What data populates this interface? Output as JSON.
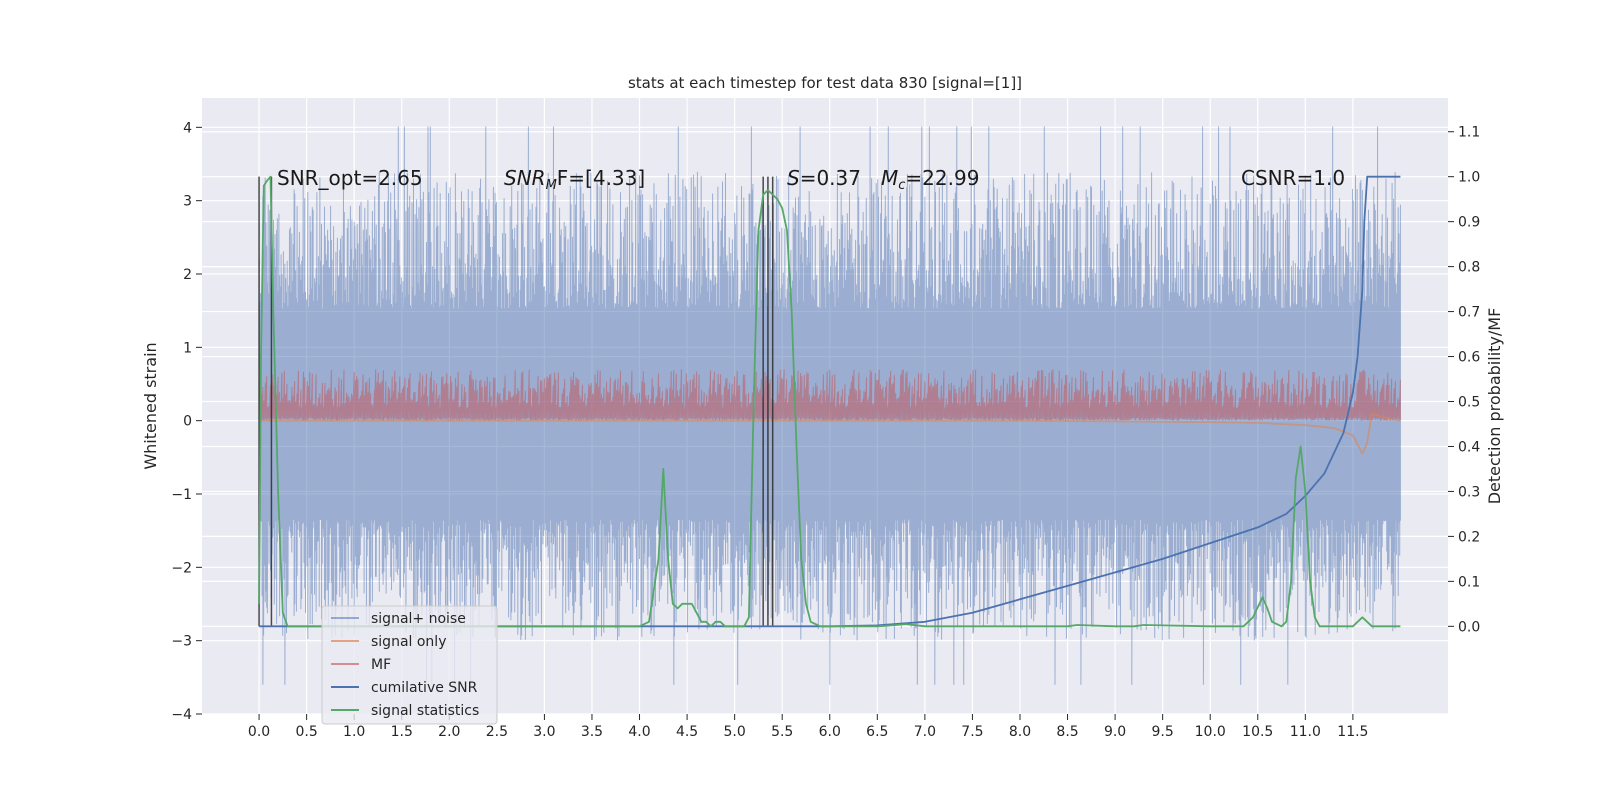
{
  "chart_data": {
    "type": "line",
    "title": "stats at each timestep for test data 830 [signal=[1]]",
    "xlabel": "",
    "ylabel": "Whitened strain",
    "ylabel_right": "Detection probability/MF",
    "xlim": [
      -0.6,
      12.5
    ],
    "ylim": [
      -4.0,
      4.4
    ],
    "ylim_right": [
      -0.195,
      1.175
    ],
    "x_ticks": [
      "0.0",
      "0.5",
      "1.0",
      "1.5",
      "2.0",
      "2.5",
      "3.0",
      "3.5",
      "4.0",
      "4.5",
      "5.0",
      "5.5",
      "6.0",
      "6.5",
      "7.0",
      "7.5",
      "8.0",
      "8.5",
      "9.0",
      "9.5",
      "10.0",
      "10.5",
      "11.0",
      "11.5"
    ],
    "y_ticks": [
      "4",
      "3",
      "2",
      "1",
      "0",
      "−1",
      "−2",
      "−3",
      "−4"
    ],
    "y_ticks_right": [
      "1.1",
      "1.0",
      "0.9",
      "0.8",
      "0.7",
      "0.6",
      "0.5",
      "0.4",
      "0.3",
      "0.2",
      "0.1",
      "0.0"
    ],
    "annotations": {
      "snr_opt": "SNR_opt=2.65",
      "snr_mf_prefix": "SNR",
      "snr_mf_sub": "M",
      "snr_mf_suffix": "F=[4.33]",
      "s_prefix": "S",
      "s_suffix": "=0.37",
      "mc_prefix": "M",
      "mc_sub": "c",
      "mc_suffix": "=22.99",
      "csnr": "CSNR=1.0"
    },
    "legend": {
      "location": "lower-left",
      "entries": [
        "signal+ noise",
        "signal only",
        "MF",
        "cumilative SNR",
        "signal statistics"
      ]
    },
    "series": [
      {
        "name": "signal+ noise",
        "axis": "left",
        "color": "#4c72b0",
        "opacity": 0.5,
        "style": "noise",
        "x_range": [
          0.0,
          12.0
        ],
        "envelope": [
          -3.0,
          3.4
        ]
      },
      {
        "name": "signal only",
        "axis": "left",
        "color": "#dd8452",
        "opacity": 0.6,
        "x": [
          0.0,
          2.0,
          4.0,
          6.0,
          8.0,
          10.0,
          10.5,
          11.0,
          11.3,
          11.5,
          11.6,
          11.65,
          11.7,
          11.8,
          12.0
        ],
        "y": [
          0.0,
          0.0,
          0.0,
          0.0,
          0.0,
          -0.02,
          -0.03,
          -0.06,
          -0.1,
          -0.2,
          -0.45,
          -0.3,
          0.1,
          0.05,
          0.0
        ]
      },
      {
        "name": "MF",
        "axis": "left",
        "color": "#c44e52",
        "opacity": 0.5,
        "style": "band",
        "x_range": [
          0.0,
          12.0
        ],
        "band": [
          0.0,
          0.7
        ]
      },
      {
        "name": "cumilative SNR",
        "axis": "right",
        "color": "#4c72b0",
        "opacity": 1.0,
        "x": [
          0.0,
          6.0,
          6.5,
          7.0,
          7.5,
          8.0,
          8.5,
          9.0,
          9.5,
          10.0,
          10.5,
          10.8,
          11.0,
          11.2,
          11.4,
          11.5,
          11.55,
          11.6,
          11.62,
          11.65,
          11.7,
          12.0
        ],
        "y": [
          0.0,
          0.0,
          0.002,
          0.01,
          0.03,
          0.06,
          0.09,
          0.12,
          0.15,
          0.185,
          0.22,
          0.25,
          0.29,
          0.34,
          0.43,
          0.52,
          0.6,
          0.75,
          0.9,
          1.0,
          1.0,
          1.0
        ]
      },
      {
        "name": "signal statistics",
        "axis": "right",
        "color": "#55a868",
        "opacity": 1.0,
        "x": [
          0.0,
          0.02,
          0.05,
          0.08,
          0.12,
          0.15,
          0.2,
          0.25,
          0.3,
          0.4,
          1.0,
          2.0,
          3.0,
          4.0,
          4.1,
          4.2,
          4.25,
          4.3,
          4.35,
          4.4,
          4.45,
          4.5,
          4.55,
          4.6,
          4.65,
          4.7,
          4.75,
          4.8,
          4.85,
          4.9,
          5.0,
          5.1,
          5.15,
          5.2,
          5.25,
          5.3,
          5.35,
          5.4,
          5.45,
          5.5,
          5.55,
          5.6,
          5.65,
          5.7,
          5.75,
          5.8,
          5.9,
          6.0,
          6.5,
          6.7,
          6.8,
          7.0,
          8.0,
          8.5,
          8.6,
          9.0,
          9.2,
          9.3,
          10.0,
          10.35,
          10.45,
          10.55,
          10.6,
          10.65,
          10.7,
          10.75,
          10.8,
          10.85,
          10.9,
          10.95,
          11.0,
          11.05,
          11.1,
          11.15,
          11.2,
          11.3,
          11.4,
          11.5,
          11.55,
          11.6,
          11.7,
          11.8,
          11.9,
          12.0
        ],
        "y": [
          0.05,
          0.6,
          0.98,
          0.99,
          1.0,
          0.7,
          0.3,
          0.03,
          0.0,
          0.0,
          0.0,
          0.0,
          0.0,
          0.0,
          0.01,
          0.15,
          0.35,
          0.15,
          0.05,
          0.04,
          0.05,
          0.05,
          0.05,
          0.03,
          0.01,
          0.01,
          0.0,
          0.01,
          0.01,
          0.0,
          0.0,
          0.0,
          0.02,
          0.5,
          0.88,
          0.96,
          0.97,
          0.96,
          0.95,
          0.93,
          0.88,
          0.7,
          0.4,
          0.15,
          0.05,
          0.01,
          0.0,
          0.0,
          0.0,
          0.003,
          0.005,
          0.0,
          0.0,
          0.0,
          0.003,
          0.0,
          0.0,
          0.003,
          0.0,
          0.0,
          0.02,
          0.065,
          0.04,
          0.01,
          0.005,
          0.0,
          0.01,
          0.1,
          0.33,
          0.4,
          0.3,
          0.1,
          0.02,
          0.0,
          0.0,
          0.0,
          0.0,
          0.0,
          0.01,
          0.02,
          0.0,
          0.0,
          0.0,
          0.0
        ]
      },
      {
        "name": "segment markers",
        "axis": "right",
        "color": "#2b2b2b",
        "opacity": 0.85,
        "style": "vlines",
        "x": [
          0.0,
          0.13,
          5.3,
          5.35,
          5.4
        ],
        "y_range": [
          0.0,
          1.0
        ]
      }
    ]
  }
}
